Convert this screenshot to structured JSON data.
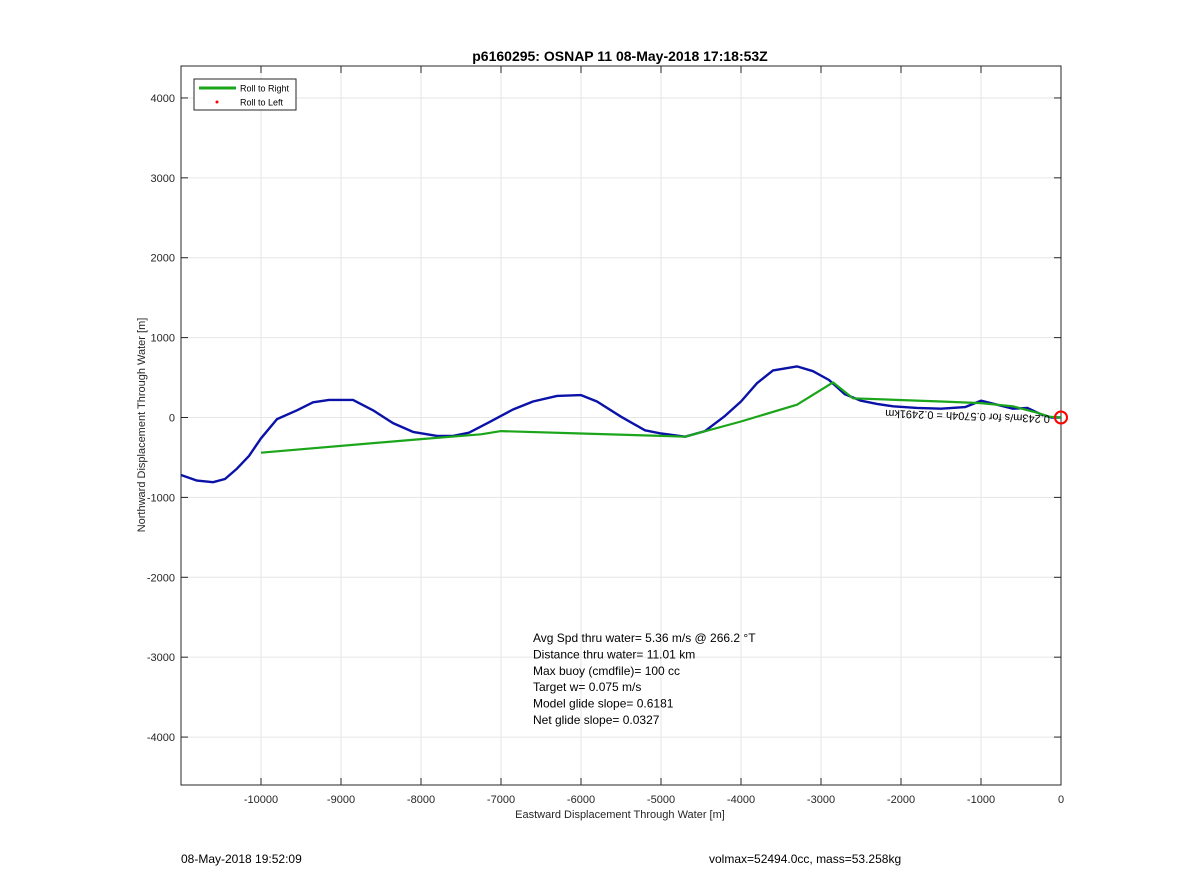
{
  "chart_data": {
    "type": "line",
    "title": "p6160295: OSNAP 11 08-May-2018 17:18:53Z",
    "xlabel": "Eastward Displacement Through Water [m]",
    "ylabel": "Northward Displacement Through Water [m]",
    "xlim": [
      -11000,
      0
    ],
    "ylim": [
      -4600,
      4400
    ],
    "xticks": [
      -10000,
      -9000,
      -8000,
      -7000,
      -6000,
      -5000,
      -4000,
      -3000,
      -2000,
      -1000,
      0
    ],
    "yticks": [
      -4000,
      -3000,
      -2000,
      -1000,
      0,
      1000,
      2000,
      3000,
      4000
    ],
    "grid": true,
    "legend_position": "top-left",
    "legend": [
      {
        "label": "Roll to Right",
        "color": "#1aa51a",
        "style": "line"
      },
      {
        "label": "Roll to Left",
        "color": "#ff0000",
        "style": "dot"
      }
    ],
    "series": [
      {
        "key": "track",
        "color": "#0a12a8",
        "x": [
          -11000,
          -10800,
          -10600,
          -10450,
          -10300,
          -10150,
          -10000,
          -9800,
          -9550,
          -9350,
          -9150,
          -8850,
          -8600,
          -8350,
          -8100,
          -7800,
          -7600,
          -7400,
          -7150,
          -6850,
          -6600,
          -6300,
          -6000,
          -5800,
          -5500,
          -5200,
          -5000,
          -4700,
          -4450,
          -4200,
          -4000,
          -3800,
          -3600,
          -3300,
          -3100,
          -2900,
          -2700,
          -2500,
          -2300,
          -2100,
          -1800,
          -1500,
          -1200,
          -1000,
          -800,
          -600,
          -420,
          -250,
          -120,
          0
        ],
        "y": [
          -720,
          -790,
          -810,
          -770,
          -640,
          -480,
          -260,
          -20,
          90,
          190,
          220,
          220,
          90,
          -70,
          -180,
          -230,
          -230,
          -190,
          -60,
          100,
          200,
          270,
          280,
          200,
          10,
          -160,
          -200,
          -240,
          -170,
          20,
          200,
          430,
          590,
          640,
          580,
          470,
          290,
          210,
          170,
          140,
          120,
          110,
          130,
          210,
          160,
          110,
          120,
          40,
          0,
          0
        ]
      },
      {
        "key": "roll_right",
        "color": "#1aa51a",
        "x": [
          -10000,
          -8000,
          -7250,
          -7000,
          -6000,
          -5000,
          -4700,
          -4000,
          -3300,
          -2850,
          -2600,
          -1500,
          -1000,
          -600,
          -300,
          -150,
          0
        ],
        "y": [
          -440,
          -270,
          -210,
          -170,
          -200,
          -230,
          -240,
          -50,
          160,
          440,
          240,
          200,
          180,
          140,
          60,
          10,
          0
        ]
      }
    ],
    "end_marker": {
      "x": 0,
      "y": 0,
      "color": "#ff0000"
    },
    "annotations": [
      "Avg Spd thru water=  5.36 m/s @ 266.2 °T",
      "Distance thru water= 11.01 km",
      "Max buoy (cmdfile)= 100 cc",
      "Target w= 0.075 m/s",
      "Model glide slope= 0.6181",
      "Net glide slope= 0.0327"
    ],
    "rotated_label": "0.243m/s for 0.5704h = 0.2491km"
  },
  "footer": {
    "left": "08-May-2018 19:52:09",
    "right": "volmax=52494.0cc, mass=53.258kg"
  }
}
